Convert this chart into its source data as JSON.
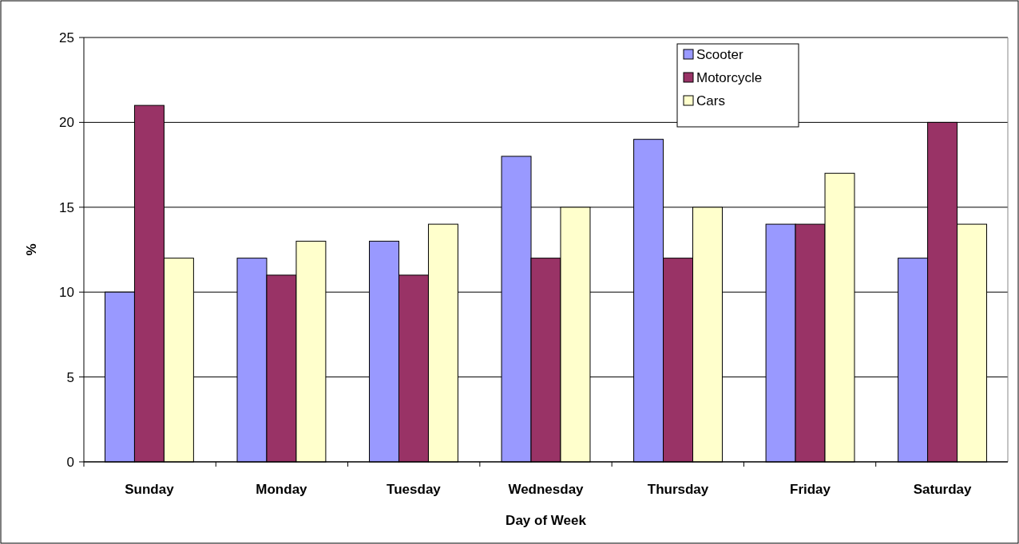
{
  "chart_data": {
    "type": "bar",
    "xlabel": "Day of Week",
    "ylabel": "%",
    "categories": [
      "Sunday",
      "Monday",
      "Tuesday",
      "Wednesday",
      "Thursday",
      "Friday",
      "Saturday"
    ],
    "series": [
      {
        "name": "Scooter",
        "color": "#9999ff",
        "values": [
          10,
          12,
          13,
          18,
          19,
          14,
          12
        ]
      },
      {
        "name": "Motorcycle",
        "color": "#993366",
        "values": [
          21,
          11,
          11,
          12,
          12,
          14,
          20
        ]
      },
      {
        "name": "Cars",
        "color": "#ffffcc",
        "values": [
          12,
          13,
          14,
          15,
          15,
          17,
          14
        ]
      }
    ],
    "ylim": [
      0,
      25
    ],
    "yticks": [
      0,
      5,
      10,
      15,
      20,
      25
    ],
    "grid": "y",
    "legend": "top right"
  }
}
